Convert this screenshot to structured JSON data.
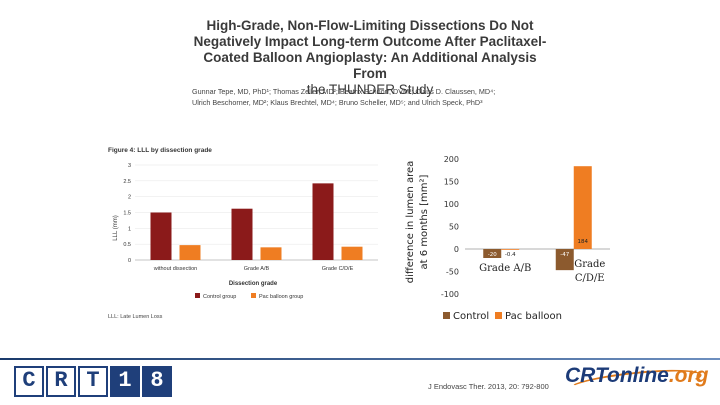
{
  "slide": {
    "title_line1": "High-Grade, Non-Flow-Limiting Dissections Do Not",
    "title_line2": "Negatively Impact Long-term Outcome After Paclitaxel-",
    "title_line3": "Coated Balloon Angioplasty: An Additional Analysis From",
    "title_line4": "the THUNDER Study",
    "authors_line1": "Gunnar Tepe, MD, PhD¹; Thomas Zeller, MD²; Beatrix Schnorr, DVM³; Claus D. Claussen, MD⁴;",
    "authors_line2": "Ulrich Beschorner, MD²; Klaus Brechtel, MD⁴; Bruno Scheller, MD⁵; and Ulrich Speck, PhD³",
    "citation": "J Endovasc Ther. 2013, 20: 792-800"
  },
  "colors": {
    "control": "#8b1a1a",
    "pac_balloon": "#ef7d22",
    "control_right": "#8c5a2e",
    "brand": "#1f3f7a"
  },
  "chart_data": [
    {
      "type": "bar",
      "title": "Figure 4: LLL by dissection grade",
      "xlabel": "Dissection grade",
      "ylabel": "LLL (mm)",
      "ylim": [
        0,
        3
      ],
      "yticks": [
        "0",
        "0.5",
        "1",
        "1.5",
        "2",
        "2.5",
        "3"
      ],
      "categories": [
        "without dissection",
        "Grade A/B",
        "Grade C/D/E"
      ],
      "series": [
        {
          "name": "Control group",
          "values": [
            1.5,
            1.62,
            2.42
          ]
        },
        {
          "name": "Pac balloon group",
          "values": [
            0.47,
            0.4,
            0.42
          ]
        }
      ],
      "footnote": "LLL: Late Lumen Loss"
    },
    {
      "type": "bar",
      "title": "",
      "ylabel": "difference in lumen area at 6 months [mm²]",
      "ylim": [
        -100,
        200
      ],
      "yticks": [
        "-100",
        "-50",
        "0",
        "50",
        "100",
        "150",
        "200"
      ],
      "categories": [
        "Grade A/B",
        "Grade C/D/E"
      ],
      "series": [
        {
          "name": "Control",
          "values": [
            -20,
            -47
          ],
          "labels": [
            "-20",
            "-47"
          ]
        },
        {
          "name": "Pac balloon",
          "values": [
            -0.4,
            184
          ],
          "labels": [
            "-0.4",
            "184"
          ]
        }
      ]
    }
  ],
  "footer": {
    "logo_letters": [
      "C",
      "R",
      "T",
      "1",
      "8"
    ],
    "crtonline": "CRTonline",
    "crtonline_tld": ".org"
  }
}
